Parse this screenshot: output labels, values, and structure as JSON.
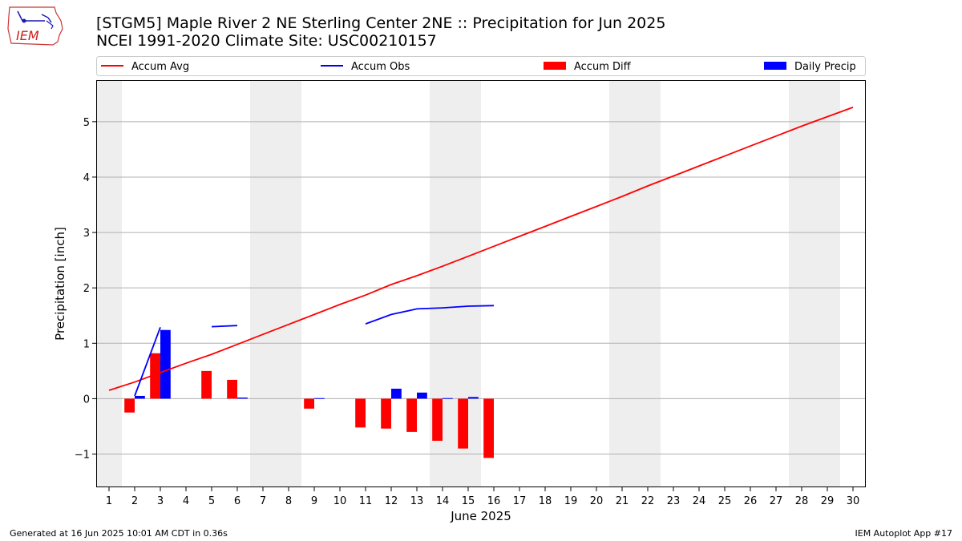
{
  "header": {
    "title_line1": "[STGM5] Maple River 2 NE Sterling Center 2NE :: Precipitation for Jun 2025",
    "title_line2": "NCEI 1991-2020 Climate Site: USC00210157",
    "logo_text": "IEM"
  },
  "footer": {
    "generated": "Generated at 16 Jun 2025 10:01 AM CDT in 0.36s",
    "app": "IEM Autoplot App #17"
  },
  "colors": {
    "avg": "#ff0000",
    "obs": "#0000ff",
    "diff": "#ff0000",
    "daily": "#0000ff",
    "weekend_shade": "#eeeeee",
    "grid": "#b0b0b0"
  },
  "chart_data": {
    "type": "bar",
    "title": "",
    "xlabel": "June 2025",
    "ylabel": "Precipitation [inch]",
    "xlim": [
      0.5,
      30.5
    ],
    "ylim": [
      -1.6,
      5.75
    ],
    "yticks": [
      -1,
      0,
      1,
      2,
      3,
      4,
      5
    ],
    "x_categories": [
      "1",
      "2",
      "3",
      "4",
      "5",
      "6",
      "7",
      "8",
      "9",
      "10",
      "11",
      "12",
      "13",
      "14",
      "15",
      "16",
      "17",
      "18",
      "19",
      "20",
      "21",
      "22",
      "23",
      "24",
      "25",
      "26",
      "27",
      "28",
      "29",
      "30"
    ],
    "grid": "horizontal",
    "legend_placement": "top",
    "legend": [
      "Accum Avg",
      "Accum Obs",
      "Accum Diff",
      "Daily Precip"
    ],
    "weekend_days": [
      1,
      7,
      8,
      14,
      15,
      21,
      22,
      28,
      29
    ],
    "series": [
      {
        "name": "Accum Avg",
        "kind": "line",
        "x": [
          1,
          2,
          3,
          4,
          5,
          6,
          7,
          8,
          9,
          10,
          11,
          12,
          13,
          14,
          15,
          16,
          17,
          18,
          19,
          20,
          21,
          22,
          23,
          24,
          25,
          26,
          27,
          28,
          29,
          30
        ],
        "values": [
          0.15,
          0.3,
          0.47,
          0.64,
          0.8,
          0.98,
          1.16,
          1.34,
          1.52,
          1.7,
          1.87,
          2.06,
          2.22,
          2.39,
          2.57,
          2.75,
          2.93,
          3.11,
          3.29,
          3.47,
          3.65,
          3.84,
          4.02,
          4.2,
          4.38,
          4.56,
          4.74,
          4.92,
          5.09,
          5.26
        ]
      },
      {
        "name": "Accum Obs",
        "kind": "line",
        "segments": [
          {
            "x": [
              2,
              3
            ],
            "values": [
              0.05,
              1.29
            ]
          },
          {
            "x": [
              5,
              6
            ],
            "values": [
              1.3,
              1.32
            ]
          },
          {
            "x": [
              11,
              12,
              13,
              14,
              15,
              16
            ],
            "values": [
              1.35,
              1.52,
              1.62,
              1.64,
              1.67,
              1.68
            ]
          }
        ]
      },
      {
        "name": "Accum Diff",
        "kind": "bar",
        "x": [
          2,
          3,
          5,
          6,
          9,
          11,
          12,
          13,
          14,
          15,
          16
        ],
        "values": [
          -0.25,
          0.82,
          0.5,
          0.34,
          -0.18,
          -0.52,
          -0.54,
          -0.6,
          -0.76,
          -0.9,
          -1.07
        ]
      },
      {
        "name": "Daily Precip",
        "kind": "bar",
        "x": [
          2,
          3,
          6,
          9,
          12,
          13,
          14,
          15
        ],
        "values": [
          0.05,
          1.24,
          0.02,
          0.01,
          0.18,
          0.11,
          0.01,
          0.03
        ]
      }
    ]
  }
}
